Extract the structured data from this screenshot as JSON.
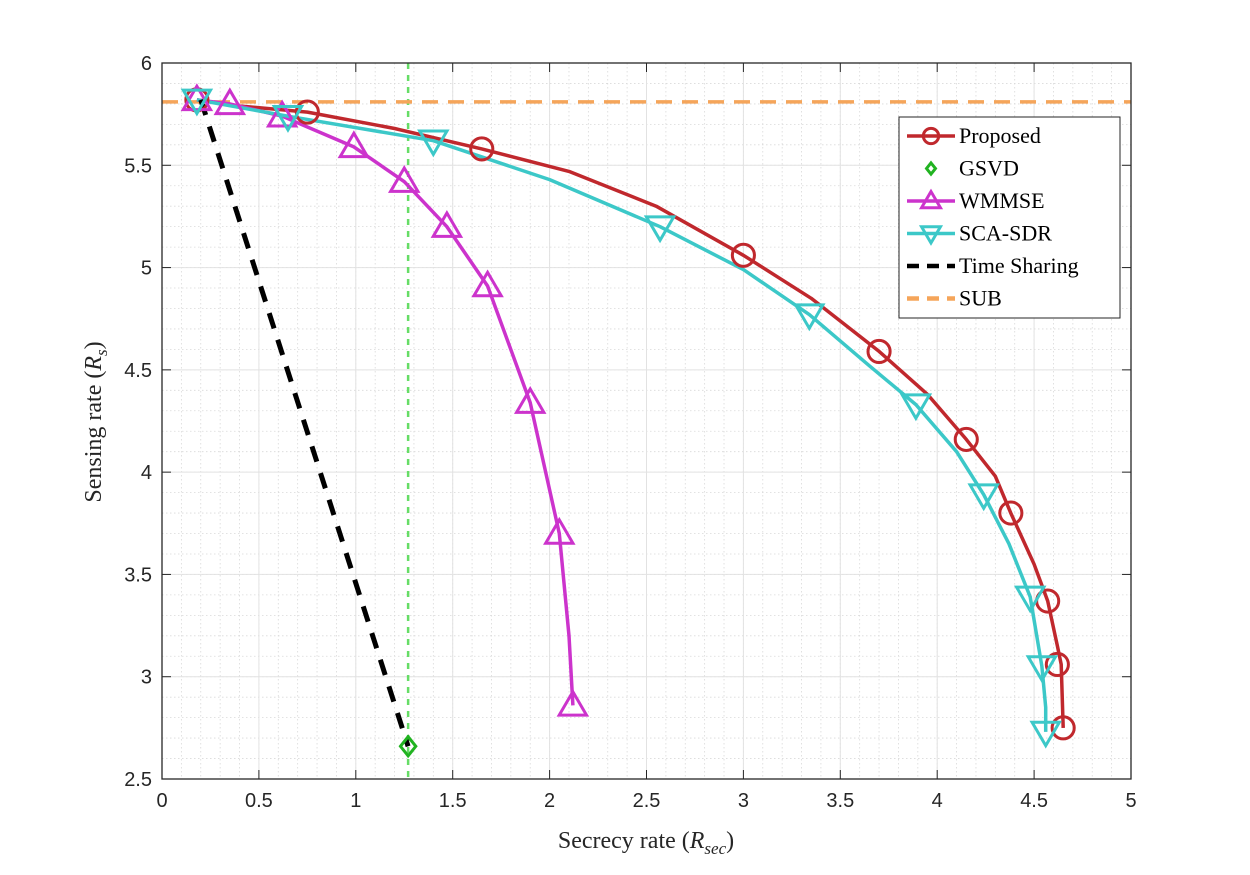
{
  "chart_data": {
    "type": "line",
    "xlabel_main": "Secrecy rate (",
    "xlabel_symbol": "R",
    "xlabel_sub": "sec",
    "xlabel_close": ")",
    "ylabel_main": "Sensing rate (",
    "ylabel_symbol": "R",
    "ylabel_sub": "s",
    "ylabel_close": ")",
    "xlim": [
      0,
      5
    ],
    "ylim": [
      2.5,
      6
    ],
    "xticks": [
      0,
      0.5,
      1,
      1.5,
      2,
      2.5,
      3,
      3.5,
      4,
      4.5,
      5
    ],
    "xtick_labels": [
      "0",
      "0.5",
      "1",
      "1.5",
      "2",
      "2.5",
      "3",
      "3.5",
      "4",
      "4.5",
      "5"
    ],
    "yticks": [
      2.5,
      3,
      3.5,
      4,
      4.5,
      5,
      5.5,
      6
    ],
    "ytick_labels": [
      "2.5",
      "3",
      "3.5",
      "4",
      "4.5",
      "5",
      "5.5",
      "6"
    ],
    "grid": true,
    "legend_position": "top-right",
    "series": [
      {
        "name": "Proposed",
        "color": "#c0282d",
        "marker": "circle",
        "line": "solid",
        "x": [
          0.18,
          0.4,
          0.75,
          1.2,
          1.65,
          2.1,
          2.55,
          3.0,
          3.35,
          3.7,
          3.95,
          4.15,
          4.3,
          4.38,
          4.5,
          4.57,
          4.62,
          4.64,
          4.65
        ],
        "y": [
          5.82,
          5.79,
          5.76,
          5.68,
          5.58,
          5.47,
          5.3,
          5.06,
          4.85,
          4.59,
          4.38,
          4.16,
          3.98,
          3.8,
          3.55,
          3.37,
          3.15,
          3.06,
          2.75
        ],
        "marker_x": [
          0.18,
          0.75,
          1.65,
          3.0,
          3.7,
          4.15,
          4.38,
          4.57,
          4.62,
          4.65
        ],
        "marker_y": [
          5.82,
          5.76,
          5.58,
          5.06,
          4.59,
          4.16,
          3.8,
          3.37,
          3.06,
          2.75
        ]
      },
      {
        "name": "GSVD",
        "color": "#21b321",
        "marker": "diamond",
        "line": "none",
        "x": [
          1.27
        ],
        "y": [
          2.66
        ],
        "vline_x": 1.27
      },
      {
        "name": "WMMSE",
        "color": "#cc33cc",
        "marker": "triangle-up",
        "line": "solid",
        "x": [
          0.18,
          0.35,
          0.62,
          0.99,
          1.25,
          1.47,
          1.68,
          1.9,
          2.05,
          2.1,
          2.12
        ],
        "y": [
          5.82,
          5.8,
          5.74,
          5.59,
          5.42,
          5.2,
          4.91,
          4.34,
          3.7,
          3.2,
          2.86
        ],
        "marker_x": [
          0.18,
          0.35,
          0.62,
          0.99,
          1.25,
          1.47,
          1.68,
          1.9,
          2.05,
          2.12
        ],
        "marker_y": [
          5.82,
          5.8,
          5.74,
          5.59,
          5.42,
          5.2,
          4.91,
          4.34,
          3.7,
          2.86
        ]
      },
      {
        "name": "SCA-SDR",
        "color": "#3cc8c8",
        "marker": "triangle-down",
        "line": "solid",
        "x": [
          0.18,
          0.65,
          1.4,
          2.0,
          2.57,
          3.0,
          3.34,
          3.65,
          3.89,
          4.1,
          4.24,
          4.37,
          4.48,
          4.54,
          4.56,
          4.56
        ],
        "y": [
          5.82,
          5.74,
          5.62,
          5.43,
          5.2,
          4.99,
          4.77,
          4.52,
          4.33,
          4.1,
          3.89,
          3.65,
          3.39,
          3.05,
          2.85,
          2.73
        ],
        "marker_x": [
          0.18,
          0.65,
          1.4,
          2.57,
          3.34,
          3.89,
          4.24,
          4.48,
          4.54,
          4.56
        ],
        "marker_y": [
          5.82,
          5.74,
          5.62,
          5.2,
          4.77,
          4.33,
          3.89,
          3.39,
          3.05,
          2.73
        ]
      },
      {
        "name": "Time Sharing",
        "color": "#000000",
        "marker": "none",
        "line": "dashed",
        "x": [
          0.2,
          1.27
        ],
        "y": [
          5.82,
          2.66
        ]
      },
      {
        "name": "SUB",
        "color": "#f5a55a",
        "marker": "none",
        "line": "dashed",
        "hline_y": 5.81
      }
    ]
  }
}
